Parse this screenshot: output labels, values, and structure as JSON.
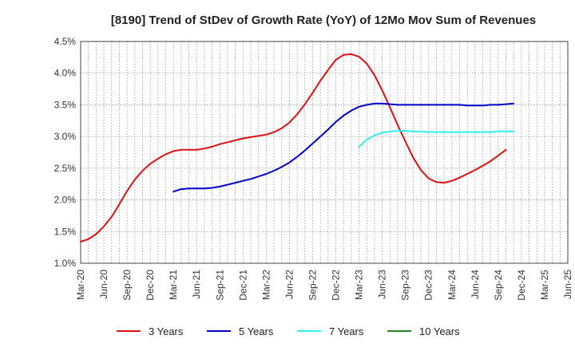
{
  "chart_data": {
    "type": "line",
    "title": "[8190]  Trend of StDev of Growth Rate (YoY) of 12Mo Mov Sum of Revenues",
    "xlabel": "",
    "ylabel": "",
    "ylim": [
      1.0,
      4.5
    ],
    "y_ticks": [
      "1.0%",
      "1.5%",
      "2.0%",
      "2.5%",
      "3.0%",
      "3.5%",
      "4.0%",
      "4.5%"
    ],
    "y_tick_values": [
      1.0,
      1.5,
      2.0,
      2.5,
      3.0,
      3.5,
      4.0,
      4.5
    ],
    "x_ticks": [
      "Mar-20",
      "Jun-20",
      "Sep-20",
      "Dec-20",
      "Mar-21",
      "Jun-21",
      "Sep-21",
      "Dec-21",
      "Mar-22",
      "Jun-22",
      "Sep-22",
      "Dec-22",
      "Mar-23",
      "Jun-23",
      "Sep-23",
      "Dec-23",
      "Mar-24",
      "Jun-24",
      "Sep-24",
      "Dec-24",
      "Mar-25",
      "Jun-25"
    ],
    "x_range_months": [
      0,
      63
    ],
    "grid": true,
    "legend_position": "bottom",
    "series": [
      {
        "name": "3 Years",
        "color": "#dd1111",
        "start_month": 0,
        "values": [
          1.34,
          1.38,
          1.46,
          1.58,
          1.73,
          1.93,
          2.14,
          2.32,
          2.46,
          2.57,
          2.65,
          2.72,
          2.77,
          2.79,
          2.79,
          2.79,
          2.81,
          2.84,
          2.88,
          2.91,
          2.94,
          2.97,
          2.99,
          3.01,
          3.03,
          3.07,
          3.13,
          3.22,
          3.35,
          3.51,
          3.69,
          3.88,
          4.05,
          4.21,
          4.29,
          4.3,
          4.26,
          4.15,
          3.97,
          3.73,
          3.46,
          3.18,
          2.92,
          2.67,
          2.47,
          2.34,
          2.28,
          2.27,
          2.3,
          2.35,
          2.41,
          2.47,
          2.54,
          2.61,
          2.7,
          2.79
        ]
      },
      {
        "name": "5 Years",
        "color": "#0000cc",
        "start_month": 12,
        "values": [
          2.13,
          2.17,
          2.18,
          2.18,
          2.18,
          2.19,
          2.21,
          2.24,
          2.27,
          2.3,
          2.33,
          2.37,
          2.41,
          2.46,
          2.52,
          2.59,
          2.68,
          2.78,
          2.89,
          3.0,
          3.11,
          3.23,
          3.33,
          3.41,
          3.47,
          3.5,
          3.52,
          3.52,
          3.51,
          3.5,
          3.5,
          3.5,
          3.5,
          3.5,
          3.5,
          3.5,
          3.5,
          3.5,
          3.49,
          3.49,
          3.49,
          3.5,
          3.5,
          3.51,
          3.52
        ]
      },
      {
        "name": "7 Years",
        "color": "#33eeee",
        "start_month": 36,
        "values": [
          2.84,
          2.95,
          3.02,
          3.06,
          3.08,
          3.09,
          3.09,
          3.08,
          3.08,
          3.07,
          3.07,
          3.07,
          3.07,
          3.07,
          3.07,
          3.07,
          3.07,
          3.07,
          3.08,
          3.08,
          3.08
        ]
      },
      {
        "name": "10 Years",
        "color": "#228822",
        "start_month": 0,
        "values": []
      }
    ]
  }
}
